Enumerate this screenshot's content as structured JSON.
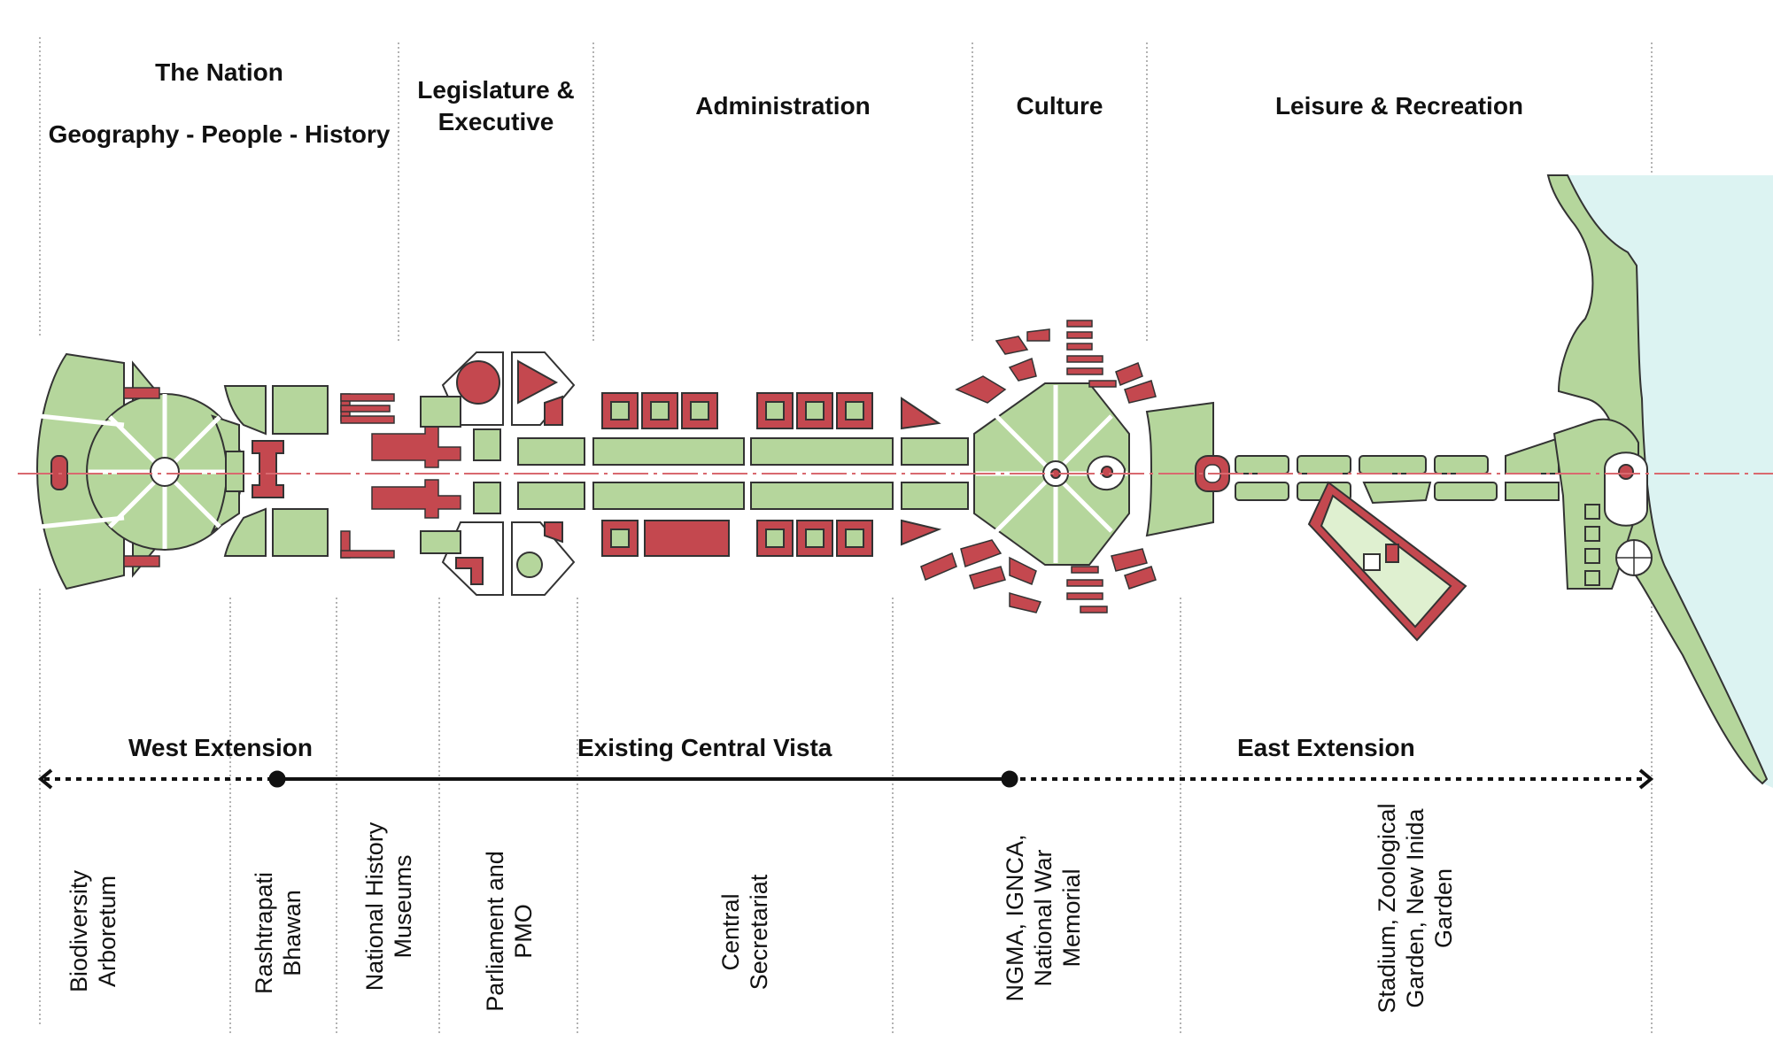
{
  "zones": [
    {
      "line1": "The Nation",
      "line2": "Geography - People - History"
    },
    {
      "line1": "Legislature &",
      "line2": "Executive"
    },
    {
      "line1": "Administration"
    },
    {
      "line1": "Culture"
    },
    {
      "line1": "Leisure & Recreation"
    }
  ],
  "extensions": {
    "west": "West Extension",
    "existing": "Existing Central Vista",
    "east": "East Extension"
  },
  "places": [
    {
      "lines": [
        "Biodiversity",
        "Arboretum"
      ]
    },
    {
      "lines": [
        "Rashtrapati",
        "Bhawan"
      ]
    },
    {
      "lines": [
        "National History",
        "Museums"
      ]
    },
    {
      "lines": [
        "Parliament and",
        "PMO"
      ]
    },
    {
      "lines": [
        "Central",
        "Secretariat"
      ]
    },
    {
      "lines": [
        "NGMA, IGNCA,",
        "National War",
        "Memorial"
      ]
    },
    {
      "lines": [
        "Stadium, Zoological",
        "Garden, New Inida",
        "Garden"
      ]
    }
  ],
  "colors": {
    "green": "#b5d69c",
    "red": "#c4484f",
    "water": "#dcf3f2",
    "axis": "#d9696f",
    "ink": "#222222"
  }
}
